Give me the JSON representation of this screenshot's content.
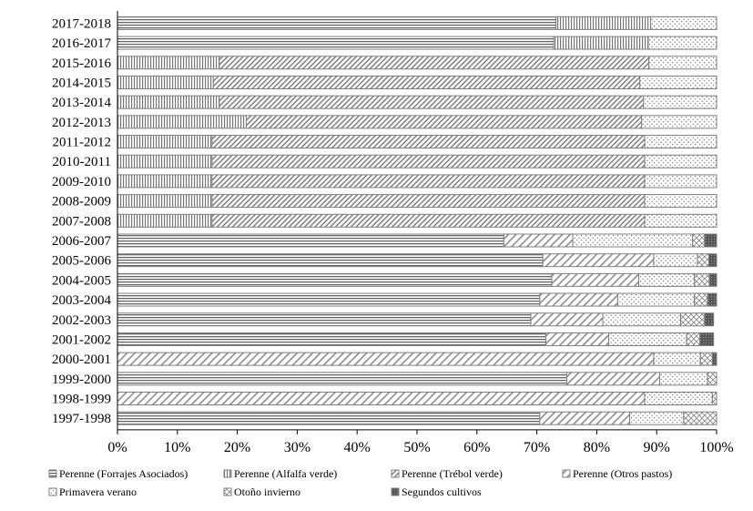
{
  "chart_data": {
    "type": "bar",
    "orientation": "horizontal",
    "stacked": "percent",
    "xlim": [
      0,
      100
    ],
    "x_ticks": [
      "0%",
      "10%",
      "20%",
      "30%",
      "40%",
      "50%",
      "60%",
      "70%",
      "80%",
      "90%",
      "100%"
    ],
    "grid": false,
    "legend_position": "bottom",
    "categories": [
      "1997-1998",
      "1998-1999",
      "1999-2000",
      "2000-2001",
      "2001-2002",
      "2002-2003",
      "2003-2004",
      "2004-2005",
      "2005-2006",
      "2006-2007",
      "2007-2008",
      "2008-2009",
      "2009-2010",
      "2010-2011",
      "2011-2012",
      "2012-2013",
      "2013-2014",
      "2014-2015",
      "2015-2016",
      "2016-2017",
      "2017-2018"
    ],
    "series": [
      {
        "name": "Perenne (Forrajes Asociados)",
        "pattern": "hlines",
        "values": [
          70.5,
          0,
          75,
          0,
          71.5,
          69,
          70.5,
          72.5,
          71,
          64.5,
          0,
          0,
          0,
          0,
          0,
          0,
          0,
          0,
          0,
          72.8,
          73.2
        ]
      },
      {
        "name": "Perenne (Alfalfa verde)",
        "pattern": "vlines",
        "values": [
          0,
          0,
          0,
          0,
          0,
          0,
          0,
          0,
          0,
          0,
          15.8,
          15.8,
          15.8,
          15.8,
          15.8,
          21.5,
          17,
          16,
          17,
          15.8,
          15.8
        ]
      },
      {
        "name": "Perenne (Trébol verde)",
        "pattern": "diagonal-dense",
        "values": [
          0,
          0,
          0,
          0,
          0,
          0,
          0,
          0,
          0,
          0,
          72.2,
          72.2,
          72.2,
          72.2,
          72.2,
          66,
          70.8,
          71.2,
          71.7,
          0,
          0
        ]
      },
      {
        "name": "Perenne (Otros pastos)",
        "pattern": "diagonal",
        "values": [
          15,
          88,
          15.5,
          89.5,
          10.5,
          12,
          13,
          14.5,
          18.5,
          11.5,
          0,
          0,
          0,
          0,
          0,
          0,
          0,
          0,
          0,
          0,
          0
        ]
      },
      {
        "name": "Primavera verano",
        "pattern": "dots",
        "values": [
          9,
          11.3,
          8,
          7.8,
          13,
          13,
          12.8,
          9.3,
          7.3,
          20,
          12,
          12,
          12,
          12,
          12,
          12.5,
          12.2,
          12.8,
          11.3,
          11.4,
          11
        ]
      },
      {
        "name": "Otoño invierno",
        "pattern": "crosshatch",
        "values": [
          5.5,
          0.7,
          1.5,
          2,
          2.2,
          4,
          2.2,
          2.5,
          1.9,
          2,
          0,
          0,
          0,
          0,
          0,
          0,
          0,
          0,
          0,
          0,
          0
        ]
      },
      {
        "name": "Segundos cultivos",
        "pattern": "dark",
        "values": [
          0,
          0,
          0,
          0.7,
          2.3,
          1.5,
          1.5,
          1.2,
          1.3,
          2,
          0,
          0,
          0,
          0,
          0,
          0,
          0,
          0,
          0,
          0,
          0
        ]
      }
    ]
  }
}
